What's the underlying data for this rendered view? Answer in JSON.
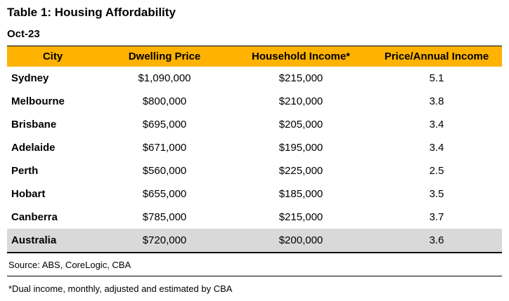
{
  "page": {
    "title": "Table 1: Housing Affordability",
    "date": "Oct-23"
  },
  "table": {
    "columns": [
      "City",
      "Dwelling Price",
      "Household Income*",
      "Price/Annual Income"
    ],
    "rows": [
      {
        "city": "Sydney",
        "dwelling_price": "$1,090,000",
        "household_income": "$215,000",
        "ratio": "5.1"
      },
      {
        "city": "Melbourne",
        "dwelling_price": "$800,000",
        "household_income": "$210,000",
        "ratio": "3.8"
      },
      {
        "city": "Brisbane",
        "dwelling_price": "$695,000",
        "household_income": "$205,000",
        "ratio": "3.4"
      },
      {
        "city": "Adelaide",
        "dwelling_price": "$671,000",
        "household_income": "$195,000",
        "ratio": "3.4"
      },
      {
        "city": "Perth",
        "dwelling_price": "$560,000",
        "household_income": "$225,000",
        "ratio": "2.5"
      },
      {
        "city": "Hobart",
        "dwelling_price": "$655,000",
        "household_income": "$185,000",
        "ratio": "3.5"
      },
      {
        "city": "Canberra",
        "dwelling_price": "$785,000",
        "household_income": "$215,000",
        "ratio": "3.7"
      },
      {
        "city": "Australia",
        "dwelling_price": "$720,000",
        "household_income": "$200,000",
        "ratio": "3.6"
      }
    ],
    "highlighted_row": "Australia"
  },
  "footer": {
    "source": "Source: ABS, CoreLogic, CBA",
    "footnote": "*Dual income, monthly, adjusted and estimated by CBA"
  },
  "colors": {
    "header_bg": "#FFB300",
    "highlight_bg": "#D9D9D9",
    "line": "#000000"
  },
  "chart_data": {
    "type": "table",
    "title": "Table 1: Housing Affordability",
    "subtitle": "Oct-23",
    "columns": [
      "City",
      "Dwelling Price",
      "Household Income*",
      "Price/Annual Income"
    ],
    "rows": [
      [
        "Sydney",
        1090000,
        215000,
        5.1
      ],
      [
        "Melbourne",
        800000,
        210000,
        3.8
      ],
      [
        "Brisbane",
        695000,
        205000,
        3.4
      ],
      [
        "Adelaide",
        671000,
        195000,
        3.4
      ],
      [
        "Perth",
        560000,
        225000,
        2.5
      ],
      [
        "Hobart",
        655000,
        185000,
        3.5
      ],
      [
        "Canberra",
        785000,
        215000,
        3.7
      ],
      [
        "Australia",
        720000,
        200000,
        3.6
      ]
    ],
    "highlighted_row": "Australia",
    "notes": [
      "Source: ABS, CoreLogic, CBA",
      "*Dual income, monthly, adjusted and estimated by CBA"
    ]
  }
}
